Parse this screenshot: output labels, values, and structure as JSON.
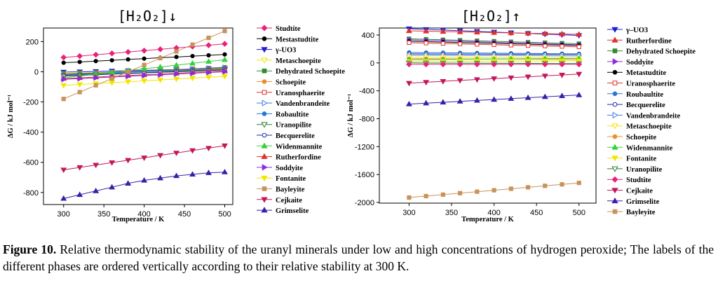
{
  "caption": {
    "label": "Figure 10.",
    "text": " Relative thermodynamic stability of the uranyl minerals under low and high concentrations of hydrogen peroxide; The labels of the different phases are ordered vertically according to their relative stability at 300 K."
  },
  "chart_data": [
    {
      "type": "line",
      "title": "[H₂O₂]↓",
      "xlabel": "Temperature / K",
      "ylabel": "ΔG / kJ mol⁻¹",
      "xlim": [
        275,
        510
      ],
      "ylim": [
        -880,
        290
      ],
      "xticks": [
        300,
        350,
        400,
        450,
        500
      ],
      "yticks": [
        200,
        0,
        -200,
        -400,
        -600,
        -800
      ],
      "x": [
        300,
        320,
        340,
        360,
        380,
        400,
        420,
        440,
        460,
        480,
        500
      ],
      "legend_position": "right, outside",
      "series": [
        {
          "name": "Studtite",
          "color": "#e8217a",
          "marker": "diamond",
          "filled": true,
          "values": [
            95,
            104,
            113,
            122,
            131,
            140,
            149,
            158,
            167,
            176,
            185
          ]
        },
        {
          "name": "Mestastudtite",
          "color": "#000000",
          "marker": "circle",
          "filled": true,
          "values": [
            60,
            65,
            71,
            76,
            82,
            87,
            93,
            98,
            104,
            109,
            115
          ]
        },
        {
          "name": "γ-UO3",
          "color": "#1f1fd1",
          "marker": "triangle-down",
          "filled": true,
          "values": [
            -2,
            0,
            2,
            5,
            7,
            9,
            12,
            14,
            16,
            19,
            21
          ]
        },
        {
          "name": "Metaschoepite",
          "color": "#f2e600",
          "marker": "triangle-down",
          "filled": false,
          "values": [
            -12,
            -9,
            -6,
            -3,
            0,
            3,
            6,
            9,
            12,
            15,
            18
          ]
        },
        {
          "name": "Dehydrated Schoepite",
          "color": "#2e8b2e",
          "marker": "square",
          "filled": true,
          "values": [
            -14,
            -11,
            -8,
            -5,
            -2,
            1,
            4,
            7,
            10,
            13,
            16
          ]
        },
        {
          "name": "Schoepite",
          "color": "#f28c28",
          "marker": "circle",
          "filled": true,
          "values": [
            -18,
            -14,
            -10,
            -6,
            -2,
            2,
            6,
            10,
            14,
            18,
            22
          ]
        },
        {
          "name": "Uranosphaerite",
          "color": "#e0312a",
          "marker": "square",
          "filled": false,
          "values": [
            -20,
            -15,
            -10,
            -5,
            0,
            5,
            10,
            15,
            20,
            25,
            30
          ]
        },
        {
          "name": "Vandenbrandeite",
          "color": "#3d7fe0",
          "marker": "triangle-right",
          "filled": false,
          "values": [
            -22,
            -17,
            -12,
            -7,
            -2,
            3,
            8,
            13,
            18,
            23,
            28
          ]
        },
        {
          "name": "Robaultite",
          "color": "#2a76d2",
          "marker": "circle",
          "filled": true,
          "values": [
            -24,
            -19,
            -14,
            -9,
            -4,
            1,
            6,
            11,
            16,
            21,
            26
          ]
        },
        {
          "name": "Uranopilite",
          "color": "#2e7d32",
          "marker": "triangle-down",
          "filled": false,
          "values": [
            -26,
            -22,
            -18,
            -14,
            -10,
            -6,
            -2,
            2,
            6,
            10,
            14
          ]
        },
        {
          "name": "Becquerelite",
          "color": "#1a2f9e",
          "marker": "circle",
          "filled": false,
          "values": [
            -28,
            -24,
            -20,
            -16,
            -12,
            -8,
            -4,
            0,
            4,
            8,
            12
          ]
        },
        {
          "name": "Widenmannite",
          "color": "#35d13a",
          "marker": "triangle-up",
          "filled": true,
          "values": [
            -40,
            -28,
            -16,
            -4,
            8,
            20,
            32,
            44,
            56,
            68,
            80
          ]
        },
        {
          "name": "Rutherfordine",
          "color": "#e0312a",
          "marker": "triangle-up",
          "filled": true,
          "values": [
            -45,
            -40,
            -35,
            -30,
            -25,
            -20,
            -15,
            -10,
            -5,
            0,
            5
          ]
        },
        {
          "name": "Soddyite",
          "color": "#8a2be2",
          "marker": "triangle-right",
          "filled": true,
          "values": [
            -50,
            -45,
            -40,
            -35,
            -30,
            -25,
            -20,
            -15,
            -10,
            -5,
            0
          ]
        },
        {
          "name": "Fontanite",
          "color": "#f2e600",
          "marker": "triangle-down",
          "filled": true,
          "values": [
            -90,
            -84,
            -78,
            -72,
            -66,
            -60,
            -54,
            -48,
            -42,
            -36,
            -30
          ]
        },
        {
          "name": "Bayleyite",
          "color": "#c8935a",
          "marker": "square",
          "filled": true,
          "values": [
            -180,
            -135,
            -90,
            -45,
            0,
            45,
            90,
            135,
            180,
            225,
            270
          ]
        },
        {
          "name": "Cejkaite",
          "color": "#c2185b",
          "marker": "triangle-down",
          "filled": true,
          "values": [
            -650,
            -634,
            -618,
            -602,
            -586,
            -570,
            -554,
            -538,
            -522,
            -506,
            -490
          ]
        },
        {
          "name": "Grimselite",
          "color": "#3b1fa8",
          "marker": "triangle-up",
          "filled": true,
          "values": [
            -840,
            -815,
            -790,
            -765,
            -740,
            -720,
            -705,
            -690,
            -680,
            -670,
            -665
          ]
        }
      ]
    },
    {
      "type": "line",
      "title": "[H₂O₂]↑",
      "xlabel": "Temperature / K",
      "ylabel": "ΔG / kJ mol⁻¹",
      "xlim": [
        265,
        520
      ],
      "ylim": [
        -2010,
        500
      ],
      "xticks": [
        300,
        350,
        400,
        450,
        500
      ],
      "yticks": [
        400,
        0,
        -400,
        -800,
        -1200,
        -1600,
        -2000
      ],
      "x": [
        300,
        320,
        340,
        360,
        380,
        400,
        420,
        440,
        460,
        480,
        500
      ],
      "legend_position": "right, outside",
      "series": [
        {
          "name": "γ–UO3",
          "color": "#1f1fd1",
          "marker": "triangle-down",
          "filled": true,
          "values": [
            490,
            480,
            471,
            461,
            452,
            442,
            432,
            423,
            413,
            404,
            394
          ]
        },
        {
          "name": "Rutherfordine",
          "color": "#e0312a",
          "marker": "triangle-up",
          "filled": true,
          "values": [
            460,
            455,
            450,
            445,
            440,
            435,
            430,
            425,
            420,
            415,
            410
          ]
        },
        {
          "name": "Dehydrated Schoepite",
          "color": "#2e8b2e",
          "marker": "square",
          "filled": true,
          "values": [
            345,
            338,
            331,
            324,
            317,
            310,
            303,
            296,
            289,
            282,
            275
          ]
        },
        {
          "name": "Soddyite",
          "color": "#8a2be2",
          "marker": "triangle-right",
          "filled": true,
          "values": [
            330,
            323,
            316,
            309,
            302,
            295,
            288,
            281,
            274,
            267,
            260
          ]
        },
        {
          "name": "Metastudtite",
          "color": "#000000",
          "marker": "circle",
          "filled": true,
          "values": [
            310,
            304,
            298,
            292,
            286,
            280,
            274,
            268,
            262,
            256,
            250
          ]
        },
        {
          "name": "Uranosphaerite",
          "color": "#e0312a",
          "marker": "square",
          "filled": false,
          "values": [
            290,
            284,
            278,
            272,
            266,
            260,
            254,
            248,
            242,
            236,
            230
          ]
        },
        {
          "name": "Roubaultite",
          "color": "#2a76d2",
          "marker": "circle",
          "filled": true,
          "values": [
            150,
            148,
            146,
            144,
            142,
            140,
            138,
            136,
            134,
            132,
            130
          ]
        },
        {
          "name": "Becquerelite",
          "color": "#1a2f9e",
          "marker": "circle",
          "filled": false,
          "values": [
            130,
            129,
            128,
            127,
            126,
            125,
            124,
            123,
            122,
            121,
            120
          ]
        },
        {
          "name": "Vandenbrandeite",
          "color": "#3d7fe0",
          "marker": "triangle-right",
          "filled": false,
          "values": [
            110,
            109,
            108,
            107,
            106,
            105,
            104,
            103,
            102,
            101,
            100
          ]
        },
        {
          "name": "Metaschoepite",
          "color": "#f2e600",
          "marker": "triangle-down",
          "filled": false,
          "values": [
            80,
            79,
            78,
            77,
            76,
            75,
            74,
            73,
            72,
            71,
            70
          ]
        },
        {
          "name": "Schoepite",
          "color": "#f28c28",
          "marker": "circle",
          "filled": true,
          "values": [
            60,
            59,
            58,
            57,
            56,
            55,
            54,
            53,
            52,
            51,
            50
          ]
        },
        {
          "name": "Widenmannite",
          "color": "#35d13a",
          "marker": "triangle-up",
          "filled": true,
          "values": [
            45,
            47,
            49,
            51,
            53,
            55,
            57,
            59,
            61,
            63,
            65
          ]
        },
        {
          "name": "Fontanite",
          "color": "#f2e600",
          "marker": "triangle-down",
          "filled": true,
          "values": [
            20,
            21,
            22,
            23,
            24,
            25,
            26,
            27,
            28,
            29,
            30
          ]
        },
        {
          "name": "Uranopilite",
          "color": "#2e7d32",
          "marker": "triangle-down",
          "filled": false,
          "values": [
            0,
            -1,
            -2,
            -3,
            -4,
            -5,
            -6,
            -7,
            -8,
            -9,
            -10
          ]
        },
        {
          "name": "Studtite",
          "color": "#e8217a",
          "marker": "diamond",
          "filled": true,
          "values": [
            -20,
            -20,
            -20,
            -20,
            -20,
            -20,
            -20,
            -20,
            -20,
            -20,
            -20
          ]
        },
        {
          "name": "Cejkaite",
          "color": "#c2185b",
          "marker": "triangle-down",
          "filled": true,
          "values": [
            -290,
            -277,
            -264,
            -251,
            -238,
            -225,
            -212,
            -199,
            -186,
            -173,
            -160
          ]
        },
        {
          "name": "Grimselite",
          "color": "#3b1fa8",
          "marker": "triangle-up",
          "filled": true,
          "values": [
            -590,
            -577,
            -564,
            -551,
            -538,
            -525,
            -512,
            -499,
            -486,
            -473,
            -460
          ]
        },
        {
          "name": "Bayleyite",
          "color": "#c8935a",
          "marker": "square",
          "filled": true,
          "values": [
            -1930,
            -1909,
            -1888,
            -1867,
            -1846,
            -1825,
            -1804,
            -1783,
            -1762,
            -1741,
            -1720
          ]
        }
      ]
    }
  ]
}
